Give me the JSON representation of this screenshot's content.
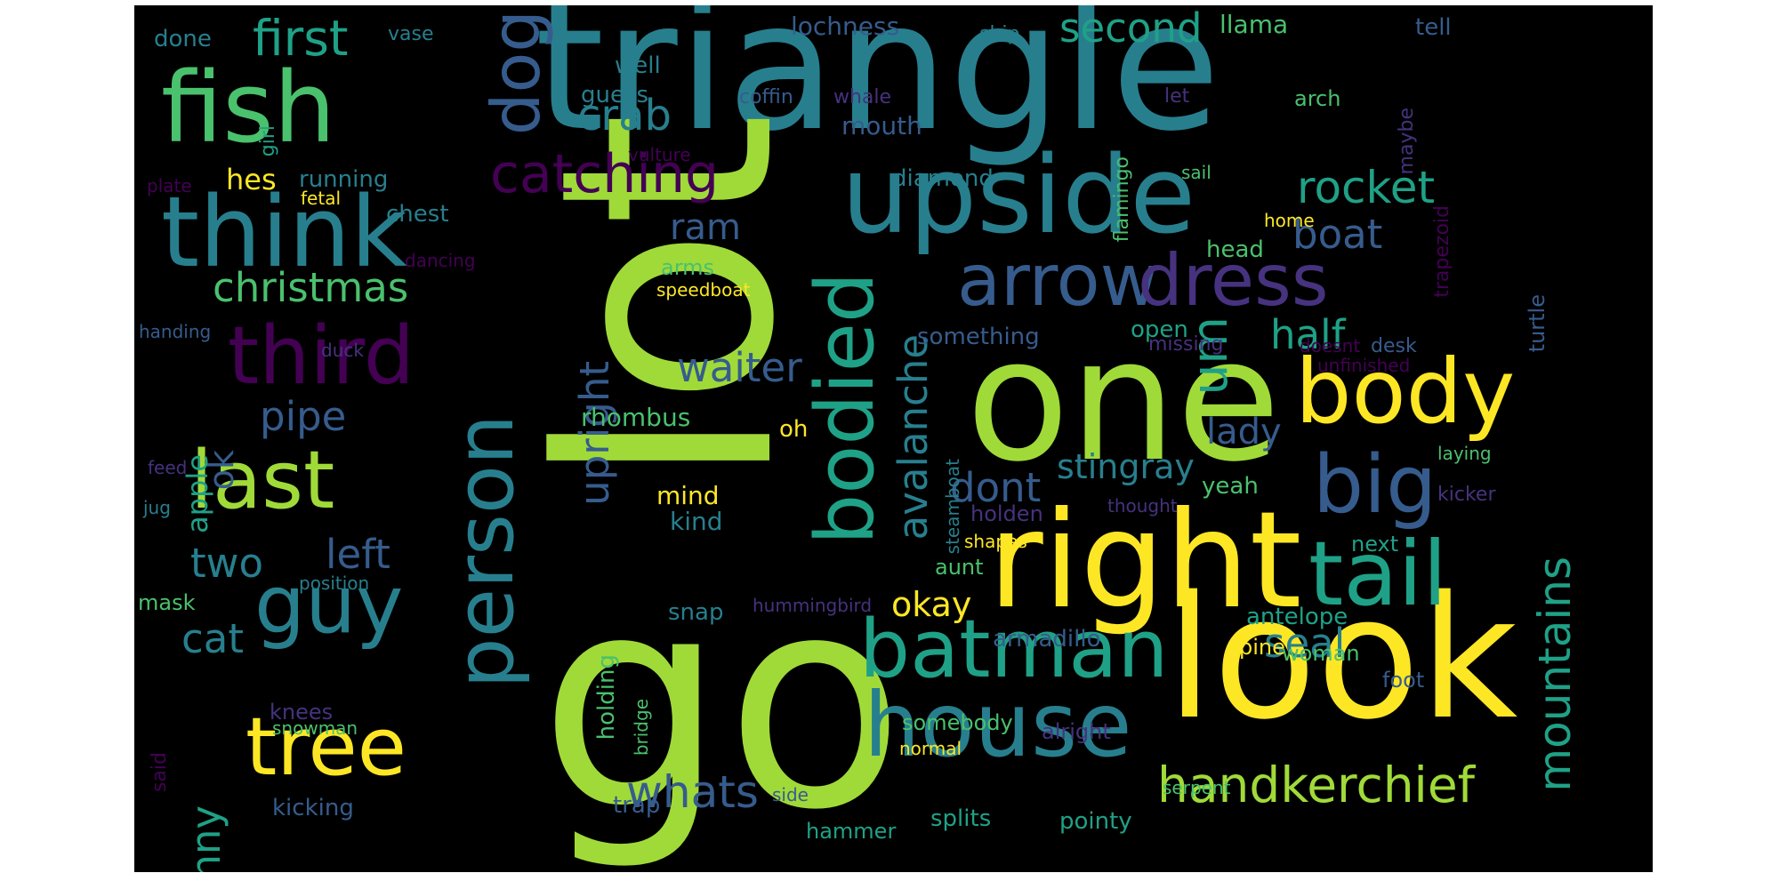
{
  "palette": {
    "background": "#000000",
    "yellow": "#fde725",
    "lime": "#a0da39",
    "green": "#4ac16d",
    "teal": "#1fa187",
    "cyan": "#277f8e",
    "blue": "#365c8d",
    "indigo": "#46327e",
    "purple": "#440154"
  },
  "words": [
    {
      "text": "triangle"
    },
    {
      "text": "lot"
    },
    {
      "text": "go"
    },
    {
      "text": "one"
    },
    {
      "text": "look"
    },
    {
      "text": "right"
    },
    {
      "text": "upside"
    },
    {
      "text": "fish"
    },
    {
      "text": "think"
    },
    {
      "text": "house"
    },
    {
      "text": "guy"
    },
    {
      "text": "batman"
    },
    {
      "text": "tree"
    },
    {
      "text": "person"
    },
    {
      "text": "body"
    },
    {
      "text": "tail"
    },
    {
      "text": "arrow"
    },
    {
      "text": "dress"
    },
    {
      "text": "third"
    },
    {
      "text": "last"
    },
    {
      "text": "big"
    },
    {
      "text": "bodied"
    },
    {
      "text": "dog"
    },
    {
      "text": "catching"
    },
    {
      "text": "first"
    },
    {
      "text": "handkerchief"
    },
    {
      "text": "christmas"
    },
    {
      "text": "um"
    },
    {
      "text": "rocket"
    },
    {
      "text": "whats"
    },
    {
      "text": "mountains"
    },
    {
      "text": "second"
    },
    {
      "text": "half"
    },
    {
      "text": "boat"
    },
    {
      "text": "crab"
    },
    {
      "text": "pipe"
    },
    {
      "text": "upright"
    },
    {
      "text": "waiter"
    },
    {
      "text": "avalanche"
    },
    {
      "text": "stingray"
    },
    {
      "text": "dont"
    },
    {
      "text": "lady"
    },
    {
      "text": "seal"
    },
    {
      "text": "left"
    },
    {
      "text": "two"
    },
    {
      "text": "cat"
    },
    {
      "text": "bunny"
    },
    {
      "text": "ram"
    },
    {
      "text": "okay"
    },
    {
      "text": "ok"
    },
    {
      "text": "apple"
    },
    {
      "text": "hes"
    },
    {
      "text": "rhombus"
    },
    {
      "text": "lochness"
    },
    {
      "text": "llama"
    },
    {
      "text": "tell"
    },
    {
      "text": "done"
    },
    {
      "text": "vase"
    },
    {
      "text": "well"
    },
    {
      "text": "guess"
    },
    {
      "text": "ship"
    },
    {
      "text": "girl"
    },
    {
      "text": "coffin"
    },
    {
      "text": "whale"
    },
    {
      "text": "mouth"
    },
    {
      "text": "flamingo"
    },
    {
      "text": "let"
    },
    {
      "text": "arch"
    },
    {
      "text": "maybe"
    },
    {
      "text": "trapezoid"
    },
    {
      "text": "vulture"
    },
    {
      "text": "plate"
    },
    {
      "text": "diamond"
    },
    {
      "text": "running"
    },
    {
      "text": "fetal"
    },
    {
      "text": "sail"
    },
    {
      "text": "chest"
    },
    {
      "text": "home"
    },
    {
      "text": "head"
    },
    {
      "text": "dancing"
    },
    {
      "text": "speedboat"
    },
    {
      "text": "arms"
    },
    {
      "text": "turtle"
    },
    {
      "text": "handing"
    },
    {
      "text": "duck"
    },
    {
      "text": "something"
    },
    {
      "text": "open"
    },
    {
      "text": "missing"
    },
    {
      "text": "doesnt"
    },
    {
      "text": "desk"
    },
    {
      "text": "unfinished"
    },
    {
      "text": "oh"
    },
    {
      "text": "laying"
    },
    {
      "text": "feed"
    },
    {
      "text": "mind"
    },
    {
      "text": "yeah"
    },
    {
      "text": "jug"
    },
    {
      "text": "kind"
    },
    {
      "text": "holden"
    },
    {
      "text": "thought"
    },
    {
      "text": "kicker"
    },
    {
      "text": "steamboat"
    },
    {
      "text": "shapes"
    },
    {
      "text": "next"
    },
    {
      "text": "aunt"
    },
    {
      "text": "position"
    },
    {
      "text": "mask"
    },
    {
      "text": "hummingbird"
    },
    {
      "text": "antelope"
    },
    {
      "text": "snap"
    },
    {
      "text": "holding"
    },
    {
      "text": "bridge"
    },
    {
      "text": "armadillo"
    },
    {
      "text": "woman"
    },
    {
      "text": "pine"
    },
    {
      "text": "foot"
    },
    {
      "text": "knees"
    },
    {
      "text": "somebody"
    },
    {
      "text": "alright"
    },
    {
      "text": "said"
    },
    {
      "text": "snowman"
    },
    {
      "text": "normal"
    },
    {
      "text": "serpent"
    },
    {
      "text": "side"
    },
    {
      "text": "kicking"
    },
    {
      "text": "trap"
    },
    {
      "text": "hammer"
    },
    {
      "text": "splits"
    },
    {
      "text": "pointy"
    }
  ]
}
